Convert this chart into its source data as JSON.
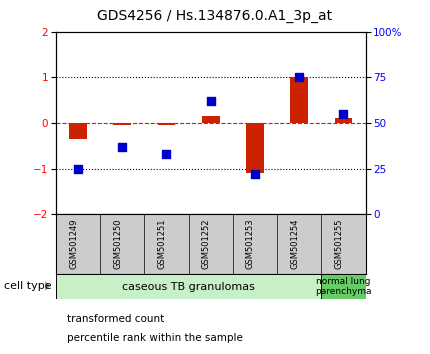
{
  "title": "GDS4256 / Hs.134876.0.A1_3p_at",
  "samples": [
    "GSM501249",
    "GSM501250",
    "GSM501251",
    "GSM501252",
    "GSM501253",
    "GSM501254",
    "GSM501255"
  ],
  "transformed_count": [
    -0.35,
    -0.05,
    -0.05,
    0.15,
    -1.1,
    1.0,
    0.12
  ],
  "percentile_rank": [
    25,
    37,
    33,
    62,
    22,
    75,
    55
  ],
  "ylim_left": [
    -2,
    2
  ],
  "ylim_right": [
    0,
    100
  ],
  "left_yticks": [
    -2,
    -1,
    0,
    1,
    2
  ],
  "right_yticks": [
    0,
    25,
    50,
    75,
    100
  ],
  "right_yticklabels": [
    "0",
    "25",
    "50",
    "75",
    "100%"
  ],
  "bar_color": "#cc2200",
  "dot_color": "#0000cc",
  "hline_color": "#cc2200",
  "cell_types": [
    {
      "label": "caseous TB granulomas",
      "n_samples": 6,
      "color": "#c8f0c8"
    },
    {
      "label": "normal lung\nparenchyma",
      "n_samples": 1,
      "color": "#66cc66"
    }
  ],
  "legend_items": [
    {
      "color": "#cc2200",
      "label": "transformed count"
    },
    {
      "color": "#0000cc",
      "label": "percentile rank within the sample"
    }
  ],
  "cell_type_label": "cell type",
  "background_color": "#ffffff",
  "plot_bg_color": "#ffffff",
  "sample_box_color": "#cccccc",
  "title_fontsize": 10,
  "tick_fontsize": 7.5,
  "label_fontsize": 8
}
